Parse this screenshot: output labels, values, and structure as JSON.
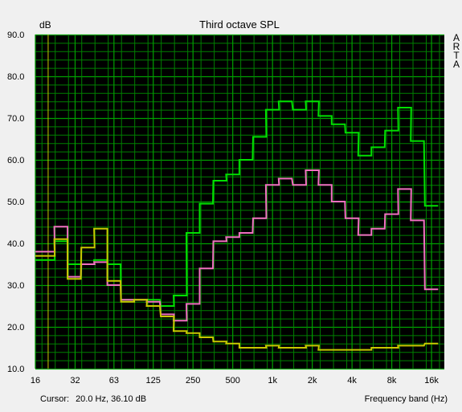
{
  "chart_data": {
    "type": "line",
    "title": "Third octave SPL",
    "ylabel": "dB",
    "xlabel": "Frequency band (Hz)",
    "ylim": [
      10,
      90
    ],
    "y_ticks": [
      "90.0",
      "80.0",
      "70.0",
      "60.0",
      "50.0",
      "40.0",
      "30.0",
      "20.0",
      "10.0"
    ],
    "x_scale": "log",
    "xlim": [
      16,
      20000
    ],
    "x_ticks": [
      {
        "label": "16",
        "value": 16
      },
      {
        "label": "32",
        "value": 32
      },
      {
        "label": "63",
        "value": 63
      },
      {
        "label": "125",
        "value": 125
      },
      {
        "label": "250",
        "value": 250
      },
      {
        "label": "500",
        "value": 500
      },
      {
        "label": "1k",
        "value": 1000
      },
      {
        "label": "2k",
        "value": 2000
      },
      {
        "label": "4k",
        "value": 4000
      },
      {
        "label": "8k",
        "value": 8000
      },
      {
        "label": "16k",
        "value": 16000
      }
    ],
    "bands": [
      16,
      20,
      25,
      31.5,
      40,
      50,
      63,
      80,
      100,
      125,
      160,
      200,
      250,
      315,
      400,
      500,
      630,
      800,
      1000,
      1250,
      1600,
      2000,
      2500,
      3150,
      4000,
      5000,
      6300,
      8000,
      10000,
      12500,
      16000
    ],
    "series": [
      {
        "color": "#00e000",
        "values": [
          36.0,
          36.0,
          40.5,
          35.0,
          35.0,
          36.0,
          35.0,
          26.5,
          26.5,
          26.5,
          25.0,
          27.5,
          42.5,
          49.5,
          55.0,
          56.5,
          60.0,
          65.5,
          72.0,
          74.0,
          72.0,
          74.0,
          70.5,
          68.5,
          66.5,
          61.0,
          63.0,
          67.0,
          72.5,
          64.5,
          49.0
        ]
      },
      {
        "color": "#f070c0",
        "values": [
          38.0,
          38.0,
          44.0,
          32.0,
          35.0,
          35.5,
          30.0,
          26.5,
          26.5,
          26.0,
          23.0,
          21.5,
          25.5,
          34.0,
          40.5,
          41.5,
          42.5,
          46.0,
          54.0,
          55.5,
          54.0,
          57.5,
          54.0,
          50.0,
          46.0,
          42.0,
          43.5,
          47.0,
          53.0,
          45.5,
          29.0
        ]
      },
      {
        "color": "#c8c800",
        "values": [
          37.0,
          37.0,
          41.0,
          31.5,
          39.0,
          43.5,
          31.0,
          26.0,
          26.5,
          25.0,
          22.5,
          19.0,
          18.5,
          17.5,
          16.5,
          16.0,
          15.0,
          15.0,
          15.5,
          15.0,
          15.0,
          15.5,
          14.5,
          14.5,
          14.5,
          14.5,
          15.0,
          15.0,
          15.5,
          15.5,
          16.0
        ]
      }
    ],
    "cursor_marker_hz": 20,
    "grid": true,
    "background": "#000000",
    "grid_color": "#008000",
    "grid_major_color": "#00a000"
  },
  "status": {
    "cursor_label": "Cursor:",
    "cursor_value": "20.0 Hz, 36.10 dB"
  },
  "side_label": [
    "A",
    "R",
    "T",
    "A"
  ]
}
